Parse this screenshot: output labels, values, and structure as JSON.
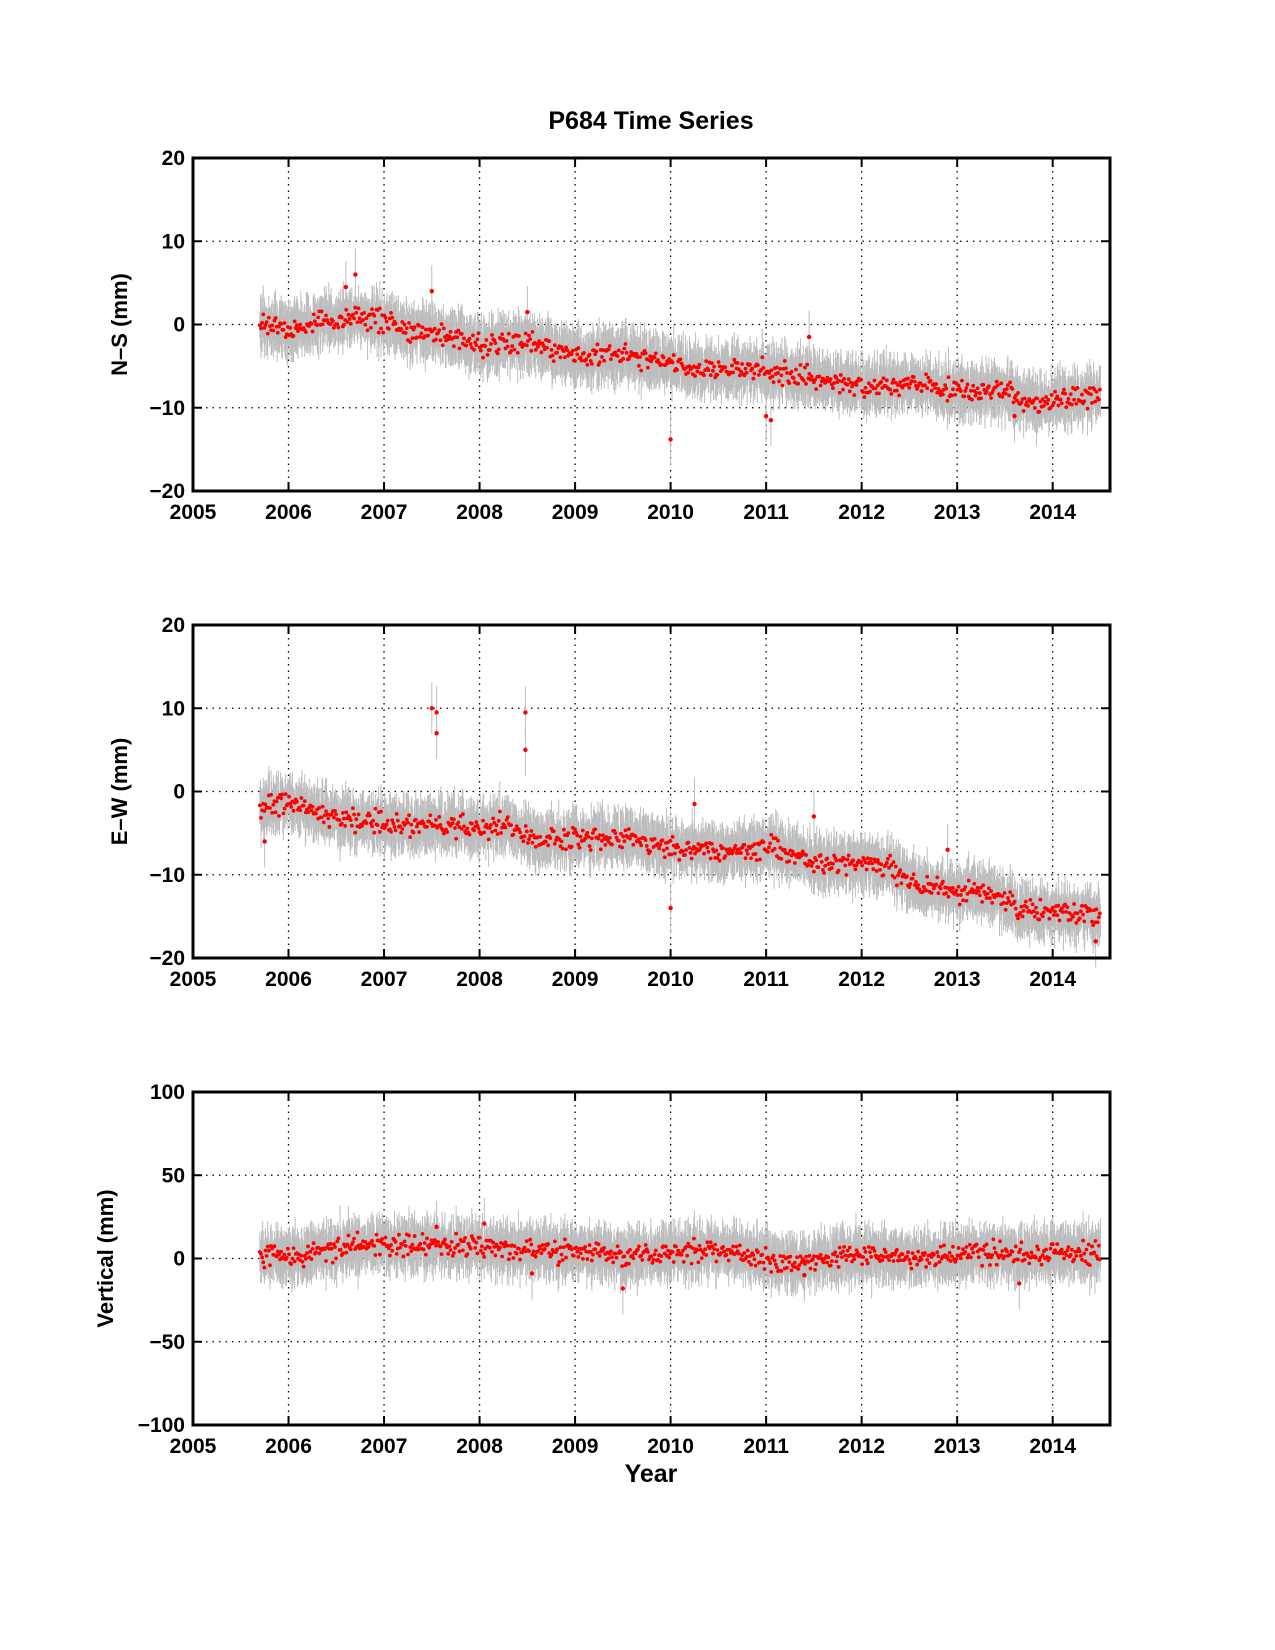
{
  "figure": {
    "title": "P684 Time Series",
    "xlabel": "Year"
  },
  "colors": {
    "points": "#ff0000",
    "error_bars": "#bdbdbd",
    "axes": "#000000"
  },
  "chart_data": [
    {
      "type": "scatter",
      "title": "P684 Time Series",
      "xlabel": "",
      "ylabel": "N–S (mm)",
      "xlim": [
        2005,
        2014.6
      ],
      "ylim": [
        -20,
        20
      ],
      "x_ticks": [
        2005,
        2006,
        2007,
        2008,
        2009,
        2010,
        2011,
        2012,
        2013,
        2014
      ],
      "y_ticks": [
        -20,
        -10,
        0,
        10,
        20
      ],
      "y_tick_labels": [
        "−20",
        "−10",
        "0",
        "10",
        "20"
      ],
      "grid": true,
      "error_bars": true,
      "data_range_x": [
        2005.7,
        2014.5
      ],
      "trend_knots": {
        "x": [
          2005.7,
          2006.0,
          2006.7,
          2007.2,
          2007.5,
          2008.0,
          2008.5,
          2009.0,
          2009.5,
          2010.0,
          2010.5,
          2011.0,
          2011.5,
          2012.0,
          2012.5,
          2013.0,
          2013.5,
          2013.8,
          2014.0,
          2014.5
        ],
        "y": [
          0.0,
          -0.5,
          1.0,
          -0.5,
          -1.0,
          -2.5,
          -2.0,
          -4.0,
          -3.5,
          -5.0,
          -5.5,
          -5.5,
          -6.5,
          -7.5,
          -7.0,
          -8.0,
          -8.0,
          -9.5,
          -9.0,
          -8.5
        ]
      },
      "outliers": [
        {
          "x": 2006.6,
          "y": 4.5
        },
        {
          "x": 2006.7,
          "y": 6.0
        },
        {
          "x": 2007.5,
          "y": 4.0
        },
        {
          "x": 2008.5,
          "y": 1.5
        },
        {
          "x": 2010.0,
          "y": -13.8
        },
        {
          "x": 2011.0,
          "y": -11.0
        },
        {
          "x": 2011.05,
          "y": -11.5
        },
        {
          "x": 2011.45,
          "y": -1.5
        },
        {
          "x": 2013.6,
          "y": -11.0
        }
      ]
    },
    {
      "type": "scatter",
      "xlabel": "",
      "ylabel": "E–W (mm)",
      "xlim": [
        2005,
        2014.6
      ],
      "ylim": [
        -20,
        20
      ],
      "x_ticks": [
        2005,
        2006,
        2007,
        2008,
        2009,
        2010,
        2011,
        2012,
        2013,
        2014
      ],
      "y_ticks": [
        -20,
        -10,
        0,
        10,
        20
      ],
      "y_tick_labels": [
        "−20",
        "−10",
        "0",
        "10",
        "20"
      ],
      "grid": true,
      "error_bars": true,
      "data_range_x": [
        2005.7,
        2014.5
      ],
      "trend_knots": {
        "x": [
          2005.7,
          2006.0,
          2006.5,
          2007.0,
          2007.5,
          2008.0,
          2008.3,
          2008.6,
          2009.0,
          2009.5,
          2010.0,
          2010.5,
          2011.0,
          2011.5,
          2012.0,
          2012.3,
          2012.6,
          2013.0,
          2013.4,
          2013.7,
          2014.0,
          2014.5
        ],
        "y": [
          -2.0,
          -1.5,
          -3.0,
          -4.0,
          -4.0,
          -4.5,
          -4.0,
          -6.0,
          -5.5,
          -5.5,
          -6.5,
          -7.5,
          -6.5,
          -8.5,
          -8.5,
          -9.0,
          -11.5,
          -12.0,
          -12.5,
          -14.5,
          -14.5,
          -15.0
        ]
      },
      "outliers": [
        {
          "x": 2007.5,
          "y": 10.0
        },
        {
          "x": 2007.55,
          "y": 9.5
        },
        {
          "x": 2007.55,
          "y": 7.0
        },
        {
          "x": 2008.48,
          "y": 9.5
        },
        {
          "x": 2008.48,
          "y": 5.0
        },
        {
          "x": 2005.75,
          "y": -6.0
        },
        {
          "x": 2010.0,
          "y": -14.0
        },
        {
          "x": 2010.25,
          "y": -1.5
        },
        {
          "x": 2011.5,
          "y": -3.0
        },
        {
          "x": 2012.9,
          "y": -7.0
        },
        {
          "x": 2014.45,
          "y": -18.0
        }
      ]
    },
    {
      "type": "scatter",
      "xlabel": "Year",
      "ylabel": "Vertical (mm)",
      "xlim": [
        2005,
        2014.6
      ],
      "ylim": [
        -100,
        100
      ],
      "x_ticks": [
        2005,
        2006,
        2007,
        2008,
        2009,
        2010,
        2011,
        2012,
        2013,
        2014
      ],
      "y_ticks": [
        -100,
        -50,
        0,
        50,
        100
      ],
      "y_tick_labels": [
        "−100",
        "−50",
        "0",
        "50",
        "100"
      ],
      "grid": true,
      "error_bars": true,
      "data_range_x": [
        2005.7,
        2014.5
      ],
      "trend_knots": {
        "x": [
          2005.7,
          2006.2,
          2006.8,
          2007.3,
          2008.0,
          2008.5,
          2009.0,
          2009.5,
          2010.0,
          2010.6,
          2011.0,
          2011.3,
          2012.0,
          2012.7,
          2013.2,
          2013.6,
          2014.0,
          2014.5
        ],
        "y": [
          2,
          2,
          9,
          8,
          7,
          4,
          5,
          1,
          4,
          5,
          0,
          -3,
          2,
          1,
          4,
          2,
          4,
          3
        ]
      },
      "outliers": [
        {
          "x": 2008.05,
          "y": 21
        },
        {
          "x": 2007.55,
          "y": 19
        },
        {
          "x": 2009.5,
          "y": -18
        },
        {
          "x": 2011.4,
          "y": -10
        },
        {
          "x": 2013.65,
          "y": -15
        },
        {
          "x": 2008.55,
          "y": -9
        }
      ]
    }
  ]
}
